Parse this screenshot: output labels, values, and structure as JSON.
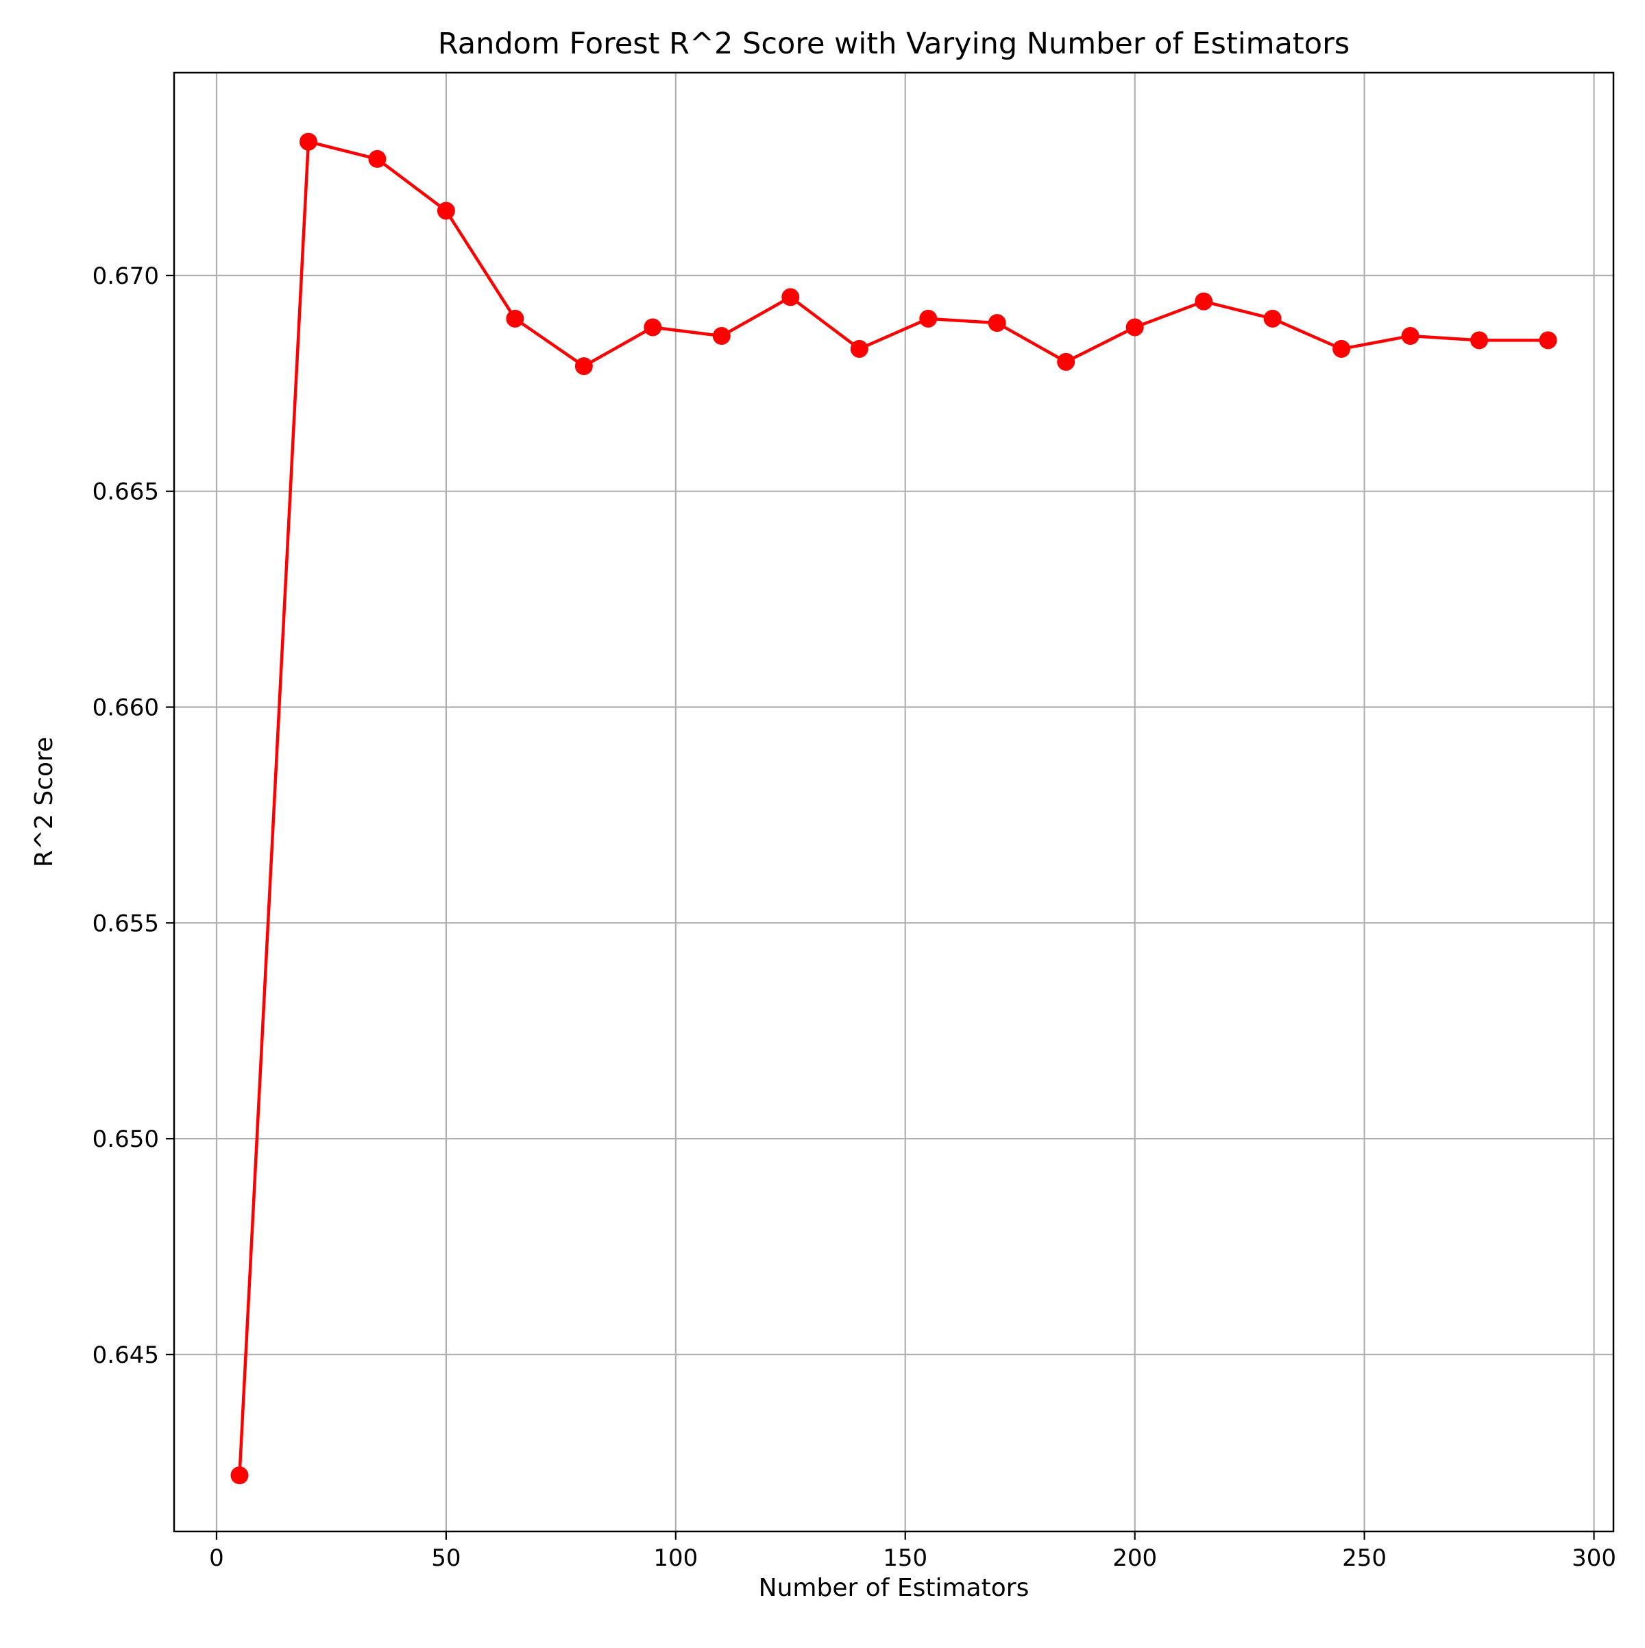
{
  "chart_data": {
    "type": "line",
    "title": "Random Forest R^2 Score with Varying Number of Estimators",
    "xlabel": "Number of Estimators",
    "ylabel": "R^2 Score",
    "xlim": [
      -9.25,
      304.25
    ],
    "ylim": [
      0.6409,
      0.6747
    ],
    "x_ticks": [
      0,
      50,
      100,
      150,
      200,
      250,
      300
    ],
    "y_ticks": [
      0.645,
      0.65,
      0.655,
      0.66,
      0.665,
      0.67
    ],
    "x_tick_labels": [
      "0",
      "50",
      "100",
      "150",
      "200",
      "250",
      "300"
    ],
    "y_tick_labels": [
      "0.645",
      "0.650",
      "0.655",
      "0.660",
      "0.665",
      "0.670"
    ],
    "grid": true,
    "legend": "none",
    "series": [
      {
        "color": "#ff0000",
        "marker": "circle",
        "x": [
          5,
          20,
          35,
          50,
          65,
          80,
          95,
          110,
          125,
          140,
          155,
          170,
          185,
          200,
          215,
          230,
          245,
          260,
          275,
          290
        ],
        "y": [
          0.6422,
          0.6731,
          0.6727,
          0.6715,
          0.669,
          0.6679,
          0.6688,
          0.6686,
          0.6695,
          0.6683,
          0.669,
          0.6689,
          0.668,
          0.6688,
          0.6694,
          0.669,
          0.6683,
          0.6686,
          0.6685,
          0.6685
        ]
      }
    ]
  }
}
